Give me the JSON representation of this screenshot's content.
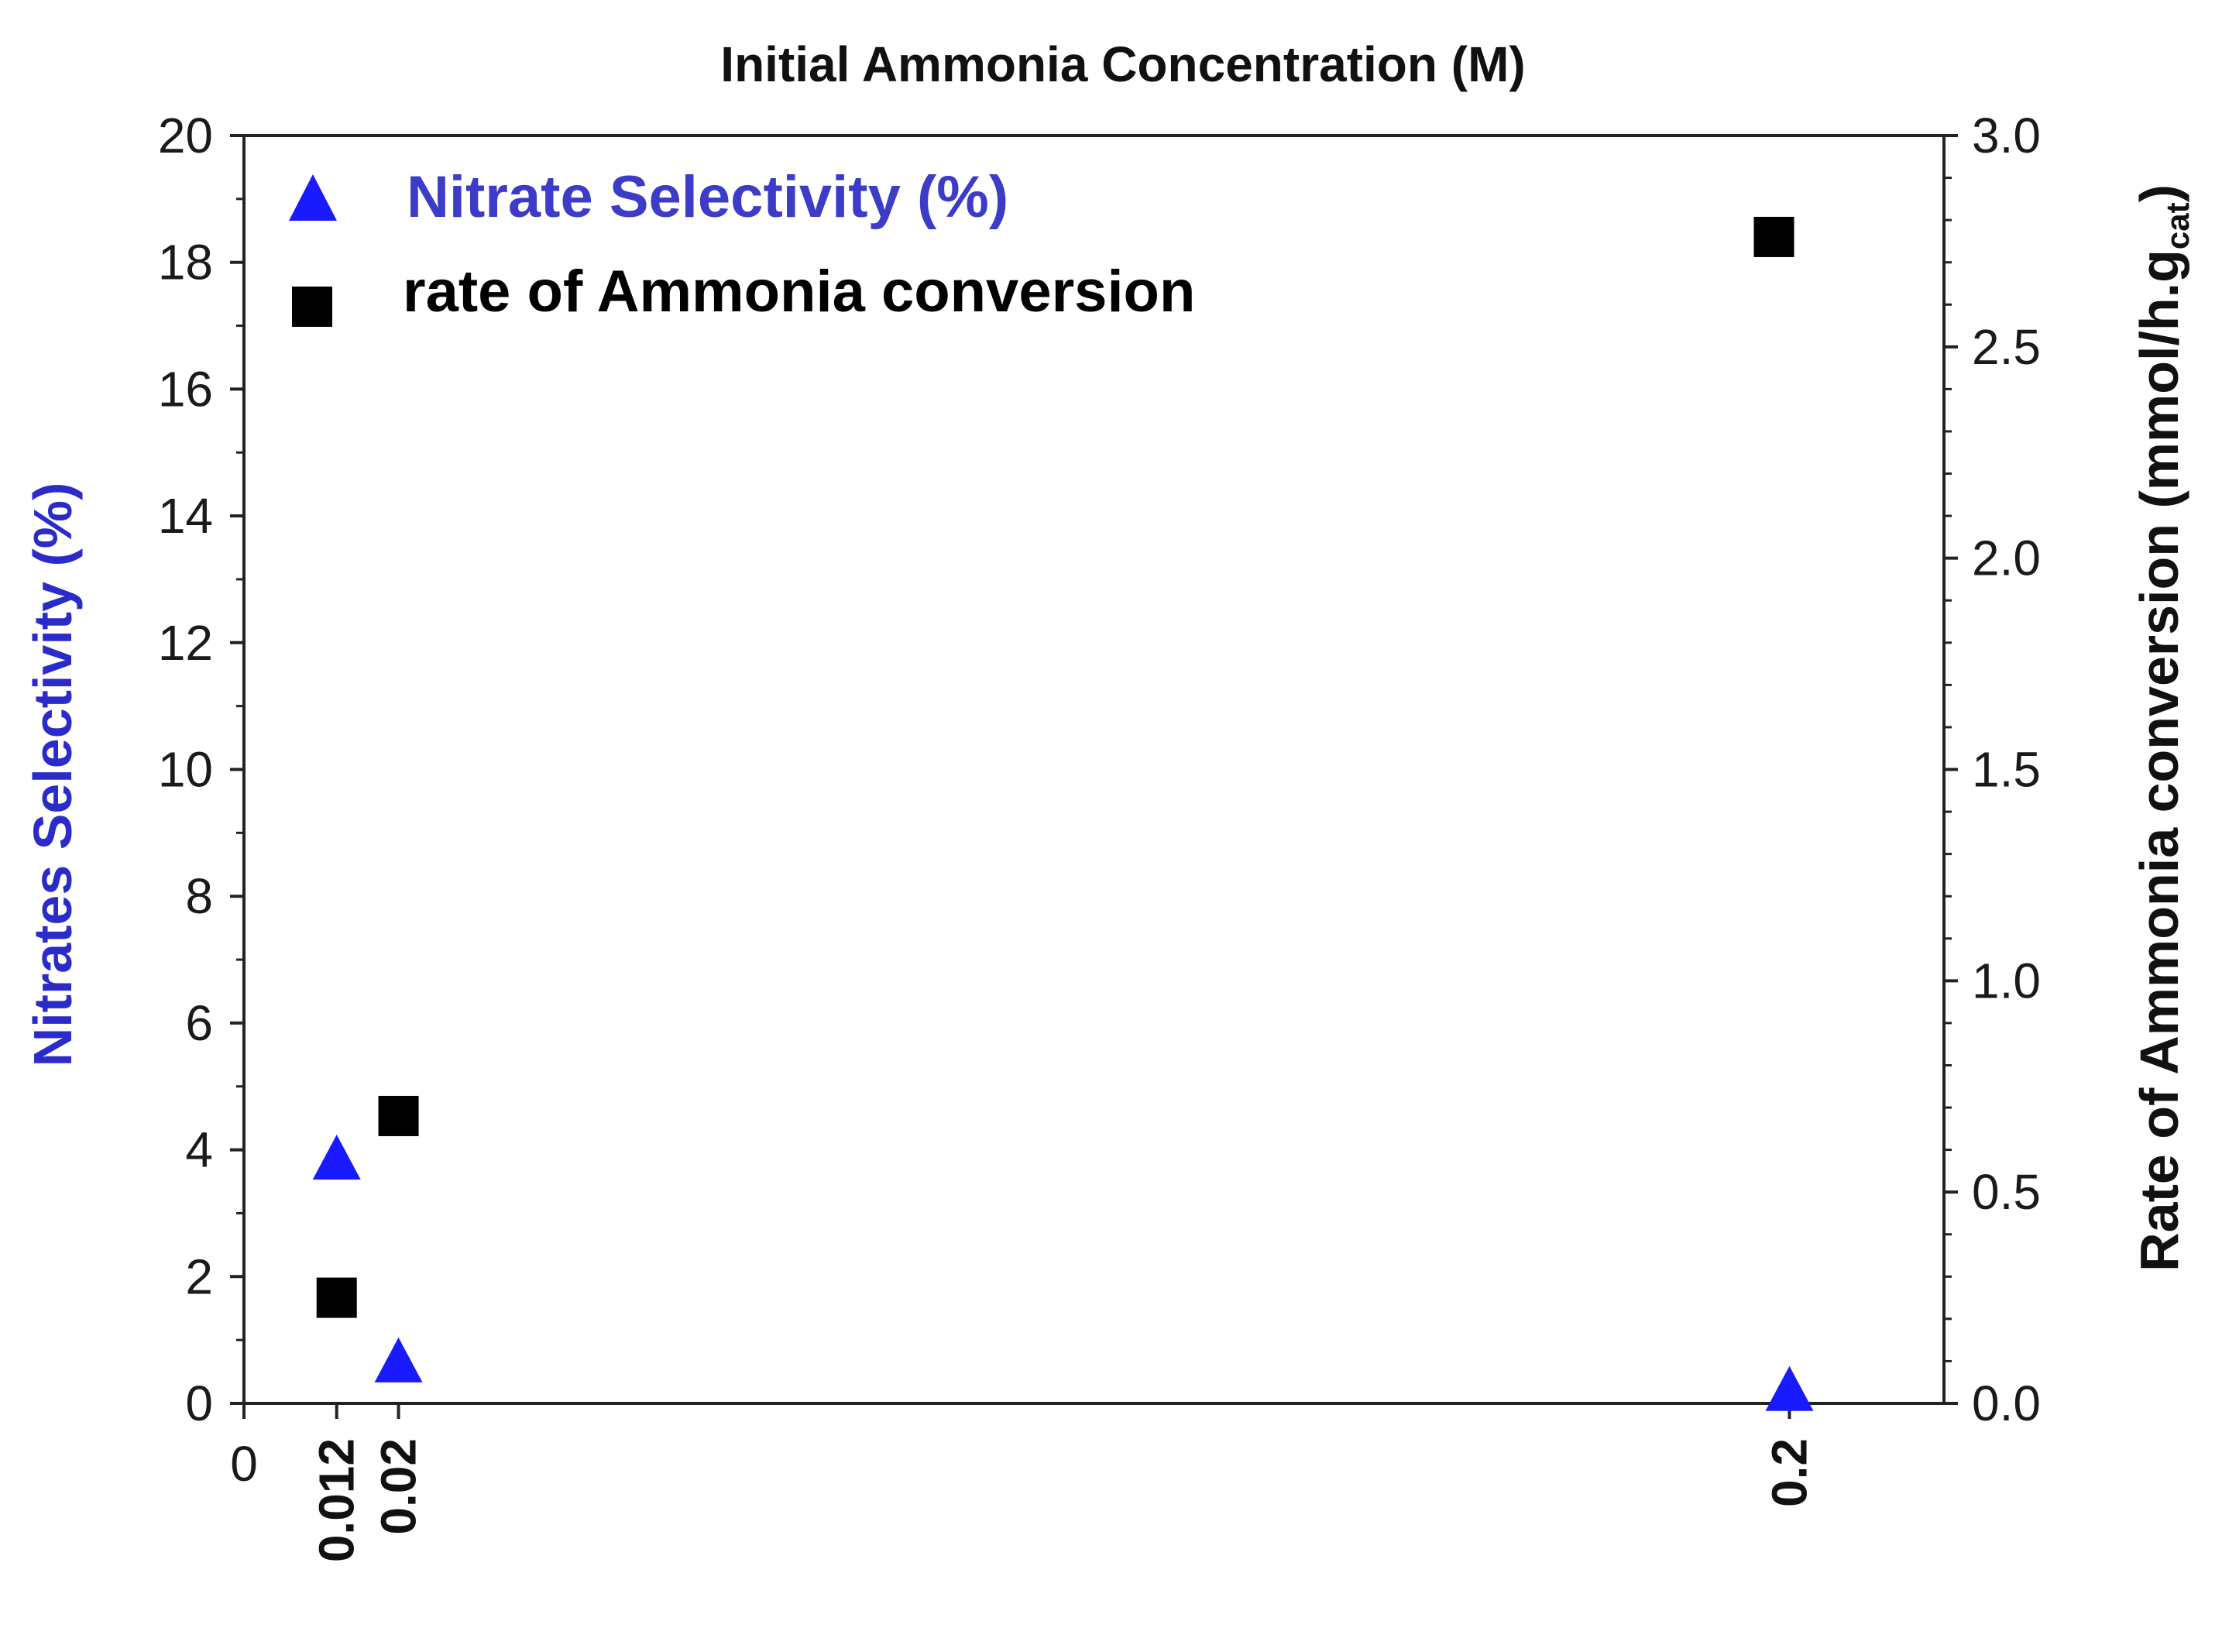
{
  "chart_data": {
    "type": "scatter",
    "title": "Initial Ammonia Concentration (M)",
    "x_tick_labels": [
      "0",
      "0.012",
      "0.02",
      "0.2"
    ],
    "x_ticks": [
      0,
      0.012,
      0.02,
      0.2
    ],
    "xlim": [
      0,
      0.22
    ],
    "y_left": {
      "label": "Nitrates Selectivity (%)",
      "ylim": [
        0,
        20
      ],
      "ticks": [
        0,
        2,
        4,
        6,
        8,
        10,
        12,
        14,
        16,
        18,
        20
      ],
      "tick_labels": [
        "0",
        "2",
        "4",
        "6",
        "8",
        "10",
        "12",
        "14",
        "16",
        "18",
        "20"
      ],
      "color": "#2b2bcc"
    },
    "y_right": {
      "label_main": "Rate of Ammonia conversion (mmol/h.g",
      "label_sub": "cat",
      "label_end": ")",
      "ylim": [
        0,
        3.0
      ],
      "ticks": [
        0,
        0.5,
        1.0,
        1.5,
        2.0,
        2.5,
        3.0
      ],
      "tick_labels": [
        "0.0",
        "0.5",
        "1.0",
        "1.5",
        "2.0",
        "2.5",
        "3.0"
      ],
      "color": "#111111"
    },
    "series": [
      {
        "name": "Nitrate Selectivity (%)",
        "axis": "left",
        "marker": "triangle",
        "color": "#1a1aff",
        "legend_text_color": "#3c3cc8",
        "points": [
          {
            "x": 0.012,
            "y": 3.8
          },
          {
            "x": 0.02,
            "y": 0.6
          },
          {
            "x": 0.2,
            "y": 0.15
          }
        ]
      },
      {
        "name": "rate of Ammonia conversion",
        "axis": "right",
        "marker": "square",
        "color": "#000000",
        "legend_text_color": "#000000",
        "points": [
          {
            "x": 0.012,
            "y": 0.25
          },
          {
            "x": 0.02,
            "y": 0.68
          },
          {
            "x": 0.198,
            "y": 2.76
          }
        ]
      }
    ],
    "legend_position": "top-left",
    "grid": false
  }
}
